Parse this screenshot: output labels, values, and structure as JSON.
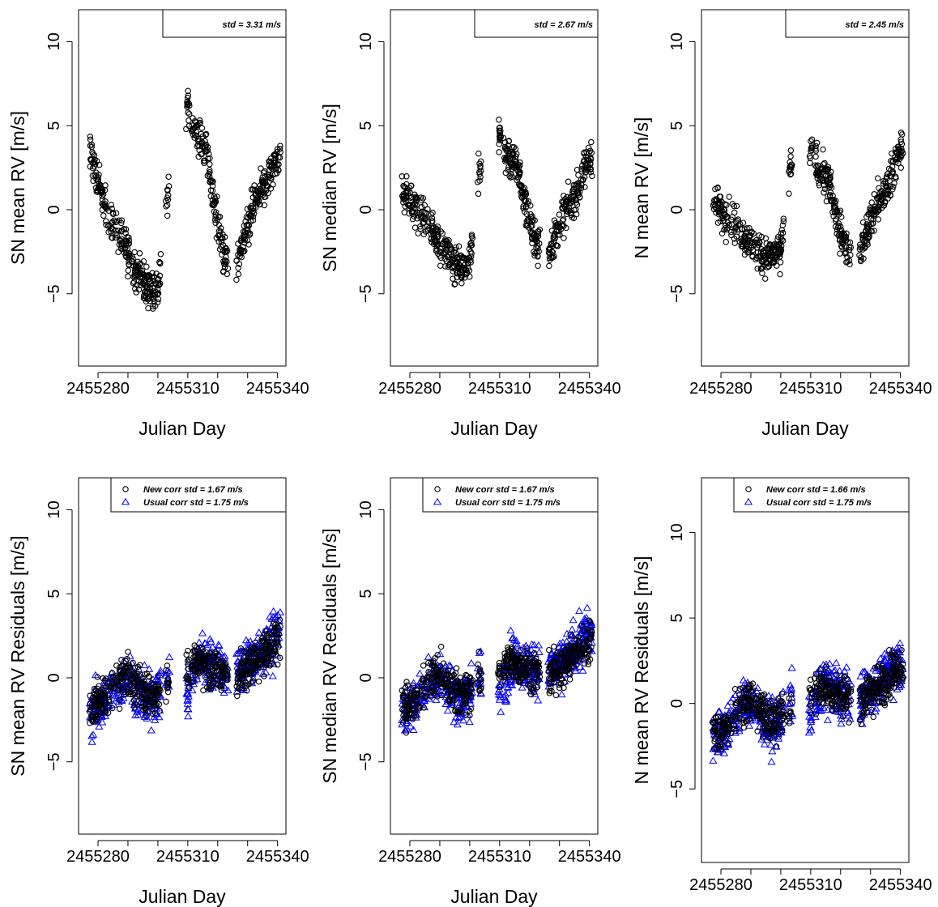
{
  "colors": {
    "circle": "#000000",
    "triangle": "#0000ff",
    "frame": "#000000"
  },
  "chart_data": [
    {
      "type": "scatter",
      "ylabel": "SN mean RV [m/s]",
      "xlabel": "Julian Day",
      "x_ticks": [
        "2455280",
        "2455310",
        "2455340"
      ],
      "y_ticks": [
        "-5",
        "0",
        "5",
        "10"
      ],
      "xlim": [
        2455273.5,
        2455342.8
      ],
      "ylim": [
        -9.3,
        11.9
      ],
      "grid": false,
      "legend_position": "top-right",
      "legend": [
        {
          "text": "std = 3.31 m/s",
          "marker": "none"
        }
      ],
      "series": [
        {
          "marker": "circle",
          "color": "#000000",
          "trend": [
            [
              2455278,
              3.2
            ],
            [
              2455281,
              0.8
            ],
            [
              2455284,
              -0.6
            ],
            [
              2455288,
              -1.8
            ],
            [
              2455293,
              -3.6
            ],
            [
              2455296,
              -4.5
            ],
            [
              2455300,
              -4.8
            ],
            [
              2455303,
              0.4
            ],
            [
              2455310,
              6.5
            ],
            [
              2455312,
              4.8
            ],
            [
              2455316,
              3.6
            ],
            [
              2455319,
              0.2
            ],
            [
              2455322,
              -2.8
            ],
            [
              2455326,
              -3.5
            ],
            [
              2455329,
              -1.8
            ],
            [
              2455332,
              0.2
            ],
            [
              2455336,
              1.6
            ],
            [
              2455340,
              3.2
            ]
          ],
          "spread": 1.5
        }
      ]
    },
    {
      "type": "scatter",
      "ylabel": "SN median RV [m/s]",
      "xlabel": "Julian Day",
      "x_ticks": [
        "2455280",
        "2455310",
        "2455340"
      ],
      "y_ticks": [
        "-5",
        "0",
        "5",
        "10"
      ],
      "xlim": [
        2455273.5,
        2455342.8
      ],
      "ylim": [
        -9.3,
        11.9
      ],
      "grid": false,
      "legend_position": "top-right",
      "legend": [
        {
          "text": "std = 2.67 m/s",
          "marker": "none"
        }
      ],
      "series": [
        {
          "marker": "circle",
          "color": "#000000",
          "trend": [
            [
              2455278,
              1.1
            ],
            [
              2455281,
              0.2
            ],
            [
              2455284,
              -0.4
            ],
            [
              2455288,
              -1.3
            ],
            [
              2455293,
              -2.8
            ],
            [
              2455296,
              -3.3
            ],
            [
              2455300,
              -3.1
            ],
            [
              2455303,
              2.2
            ],
            [
              2455310,
              4.5
            ],
            [
              2455312,
              3.3
            ],
            [
              2455316,
              2.6
            ],
            [
              2455319,
              0.0
            ],
            [
              2455322,
              -1.8
            ],
            [
              2455326,
              -2.6
            ],
            [
              2455329,
              -1.4
            ],
            [
              2455332,
              0.0
            ],
            [
              2455336,
              1.1
            ],
            [
              2455340,
              3.2
            ]
          ],
          "spread": 1.4
        }
      ]
    },
    {
      "type": "scatter",
      "ylabel": "N mean RV [m/s]",
      "xlabel": "Julian Day",
      "x_ticks": [
        "2455280",
        "2455310",
        "2455340"
      ],
      "y_ticks": [
        "-5",
        "0",
        "5",
        "10"
      ],
      "xlim": [
        2455273.5,
        2455342.8
      ],
      "ylim": [
        -9.3,
        11.9
      ],
      "grid": false,
      "legend_position": "top-right",
      "legend": [
        {
          "text": "std = 2.45 m/s",
          "marker": "none"
        }
      ],
      "series": [
        {
          "marker": "circle",
          "color": "#000000",
          "trend": [
            [
              2455278,
              0.3
            ],
            [
              2455281,
              -0.2
            ],
            [
              2455284,
              -0.6
            ],
            [
              2455288,
              -1.6
            ],
            [
              2455293,
              -2.6
            ],
            [
              2455296,
              -2.9
            ],
            [
              2455300,
              -2.4
            ],
            [
              2455303,
              2.4
            ],
            [
              2455310,
              3.6
            ],
            [
              2455312,
              2.6
            ],
            [
              2455316,
              1.6
            ],
            [
              2455319,
              -0.8
            ],
            [
              2455322,
              -2.2
            ],
            [
              2455326,
              -2.6
            ],
            [
              2455329,
              -1.2
            ],
            [
              2455332,
              0.2
            ],
            [
              2455336,
              1.6
            ],
            [
              2455340,
              3.6
            ]
          ],
          "spread": 1.4
        }
      ]
    },
    {
      "type": "scatter",
      "ylabel": "SN mean RV Residuals [m/s]",
      "xlabel": "Julian Day",
      "x_ticks": [
        "2455280",
        "2455310",
        "2455340"
      ],
      "y_ticks": [
        "-5",
        "0",
        "5",
        "10"
      ],
      "xlim": [
        2455273.5,
        2455342.8
      ],
      "ylim": [
        -9.3,
        11.9
      ],
      "grid": false,
      "legend_position": "top-right",
      "legend": [
        {
          "text": "New corr std = 1.67 m/s",
          "marker": "circle",
          "color": "#000000"
        },
        {
          "text": "Usual corr std = 1.75 m/s",
          "marker": "triangle",
          "color": "#0000ff"
        }
      ],
      "series": [
        {
          "marker": "triangle",
          "color": "#0000ff",
          "trend": [
            [
              2455278,
              -2.0
            ],
            [
              2455282,
              -1.4
            ],
            [
              2455286,
              -0.3
            ],
            [
              2455290,
              0.1
            ],
            [
              2455294,
              -0.8
            ],
            [
              2455298,
              -1.4
            ],
            [
              2455302,
              -0.2
            ],
            [
              2455306,
              0.6
            ],
            [
              2455310,
              -0.9
            ],
            [
              2455314,
              1.2
            ],
            [
              2455318,
              0.8
            ],
            [
              2455322,
              0.5
            ],
            [
              2455326,
              0.2
            ],
            [
              2455330,
              0.8
            ],
            [
              2455334,
              1.4
            ],
            [
              2455338,
              2.2
            ],
            [
              2455340,
              2.6
            ]
          ],
          "spread": 1.9
        },
        {
          "marker": "circle",
          "color": "#000000",
          "trend": [
            [
              2455278,
              -1.8
            ],
            [
              2455282,
              -1.3
            ],
            [
              2455286,
              -0.3
            ],
            [
              2455290,
              0.2
            ],
            [
              2455294,
              -0.6
            ],
            [
              2455298,
              -1.2
            ],
            [
              2455302,
              -0.4
            ],
            [
              2455306,
              0.4
            ],
            [
              2455310,
              0.5
            ],
            [
              2455314,
              1.0
            ],
            [
              2455318,
              0.6
            ],
            [
              2455322,
              0.4
            ],
            [
              2455326,
              0.1
            ],
            [
              2455330,
              0.6
            ],
            [
              2455334,
              1.2
            ],
            [
              2455338,
              2.0
            ],
            [
              2455340,
              2.3
            ]
          ],
          "spread": 1.6
        }
      ]
    },
    {
      "type": "scatter",
      "ylabel": "SN median RV Residuals [m/s]",
      "xlabel": "Julian Day",
      "x_ticks": [
        "2455280",
        "2455310",
        "2455340"
      ],
      "y_ticks": [
        "-5",
        "0",
        "5",
        "10"
      ],
      "xlim": [
        2455273.5,
        2455342.8
      ],
      "ylim": [
        -9.3,
        11.9
      ],
      "grid": false,
      "legend_position": "top-right",
      "legend": [
        {
          "text": "New corr std = 1.67 m/s",
          "marker": "circle",
          "color": "#000000"
        },
        {
          "text": "Usual corr std = 1.75 m/s",
          "marker": "triangle",
          "color": "#0000ff"
        }
      ],
      "series": [
        {
          "marker": "triangle",
          "color": "#0000ff",
          "trend": [
            [
              2455278,
              -2.0
            ],
            [
              2455282,
              -1.4
            ],
            [
              2455286,
              -0.3
            ],
            [
              2455290,
              0.1
            ],
            [
              2455294,
              -0.8
            ],
            [
              2455298,
              -1.4
            ],
            [
              2455302,
              -0.2
            ],
            [
              2455306,
              0.6
            ],
            [
              2455310,
              -0.9
            ],
            [
              2455314,
              1.2
            ],
            [
              2455318,
              0.8
            ],
            [
              2455322,
              0.5
            ],
            [
              2455326,
              0.2
            ],
            [
              2455330,
              0.8
            ],
            [
              2455334,
              1.4
            ],
            [
              2455338,
              2.2
            ],
            [
              2455340,
              2.6
            ]
          ],
          "spread": 1.9
        },
        {
          "marker": "circle",
          "color": "#000000",
          "trend": [
            [
              2455278,
              -1.7
            ],
            [
              2455282,
              -1.2
            ],
            [
              2455286,
              -0.2
            ],
            [
              2455290,
              0.2
            ],
            [
              2455294,
              -0.6
            ],
            [
              2455298,
              -1.1
            ],
            [
              2455302,
              -0.3
            ],
            [
              2455306,
              0.4
            ],
            [
              2455310,
              0.5
            ],
            [
              2455314,
              1.0
            ],
            [
              2455318,
              0.7
            ],
            [
              2455322,
              0.4
            ],
            [
              2455326,
              0.1
            ],
            [
              2455330,
              0.6
            ],
            [
              2455334,
              1.2
            ],
            [
              2455338,
              1.9
            ],
            [
              2455340,
              2.2
            ]
          ],
          "spread": 1.6
        }
      ]
    },
    {
      "type": "scatter",
      "ylabel": "N mean RV Residuals [m/s]",
      "xlabel": "Julian Day",
      "x_ticks": [
        "2455280",
        "2455310",
        "2455340"
      ],
      "y_ticks": [
        "-5",
        "0",
        "5",
        "10"
      ],
      "xlim": [
        2455273.5,
        2455342.8
      ],
      "ylim": [
        -9.3,
        13.2
      ],
      "grid": false,
      "legend_position": "top-right",
      "legend": [
        {
          "text": "New corr std = 1.66 m/s",
          "marker": "circle",
          "color": "#000000"
        },
        {
          "text": "Usual corr std = 1.75 m/s",
          "marker": "triangle",
          "color": "#0000ff"
        }
      ],
      "series": [
        {
          "marker": "triangle",
          "color": "#0000ff",
          "trend": [
            [
              2455278,
              -2.0
            ],
            [
              2455282,
              -1.4
            ],
            [
              2455286,
              -0.3
            ],
            [
              2455290,
              0.1
            ],
            [
              2455294,
              -0.8
            ],
            [
              2455298,
              -1.4
            ],
            [
              2455302,
              -0.2
            ],
            [
              2455306,
              0.6
            ],
            [
              2455310,
              -0.9
            ],
            [
              2455314,
              1.2
            ],
            [
              2455318,
              0.8
            ],
            [
              2455322,
              0.5
            ],
            [
              2455326,
              0.2
            ],
            [
              2455330,
              0.8
            ],
            [
              2455334,
              1.4
            ],
            [
              2455338,
              2.2
            ],
            [
              2455340,
              2.6
            ]
          ],
          "spread": 1.9
        },
        {
          "marker": "circle",
          "color": "#000000",
          "trend": [
            [
              2455278,
              -1.8
            ],
            [
              2455282,
              -1.2
            ],
            [
              2455286,
              -0.3
            ],
            [
              2455290,
              0.2
            ],
            [
              2455294,
              -0.6
            ],
            [
              2455298,
              -1.1
            ],
            [
              2455302,
              -0.3
            ],
            [
              2455306,
              0.4
            ],
            [
              2455310,
              0.5
            ],
            [
              2455314,
              1.0
            ],
            [
              2455318,
              0.6
            ],
            [
              2455322,
              0.4
            ],
            [
              2455326,
              0.1
            ],
            [
              2455330,
              0.6
            ],
            [
              2455334,
              1.2
            ],
            [
              2455338,
              2.0
            ],
            [
              2455340,
              2.3
            ]
          ],
          "spread": 1.6
        }
      ]
    }
  ],
  "observation_nights": [
    2455277.6,
    2455278.1,
    2455278.6,
    2455279.1,
    2455279.6,
    2455280.1,
    2455280.6,
    2455281.1,
    2455281.6,
    2455282.1,
    2455282.6,
    2455283.6,
    2455284.6,
    2455285.1,
    2455286.1,
    2455287.1,
    2455287.6,
    2455288.1,
    2455288.6,
    2455289.1,
    2455289.6,
    2455290.1,
    2455290.6,
    2455291.6,
    2455292.1,
    2455292.6,
    2455293.1,
    2455293.6,
    2455294.1,
    2455294.6,
    2455295.1,
    2455295.6,
    2455296.1,
    2455296.6,
    2455297.1,
    2455297.6,
    2455298.1,
    2455298.6,
    2455299.1,
    2455299.6,
    2455300.1,
    2455300.6,
    2455303.0,
    2455303.5,
    2455309.8,
    2455310.2,
    2455311.6,
    2455312.1,
    2455312.6,
    2455313.1,
    2455313.6,
    2455314.1,
    2455314.6,
    2455315.1,
    2455315.6,
    2455316.1,
    2455316.6,
    2455317.1,
    2455317.6,
    2455318.1,
    2455318.6,
    2455319.1,
    2455319.6,
    2455320.1,
    2455320.6,
    2455321.1,
    2455321.6,
    2455322.1,
    2455322.6,
    2455323.1,
    2455326.6,
    2455327.1,
    2455327.6,
    2455328.1,
    2455328.6,
    2455329.1,
    2455329.6,
    2455330.1,
    2455330.6,
    2455331.1,
    2455331.6,
    2455332.1,
    2455332.6,
    2455333.1,
    2455333.6,
    2455334.1,
    2455334.6,
    2455335.1,
    2455335.6,
    2455336.1,
    2455336.6,
    2455337.1,
    2455337.6,
    2455338.1,
    2455338.6,
    2455339.1,
    2455339.6,
    2455340.1,
    2455340.6
  ]
}
